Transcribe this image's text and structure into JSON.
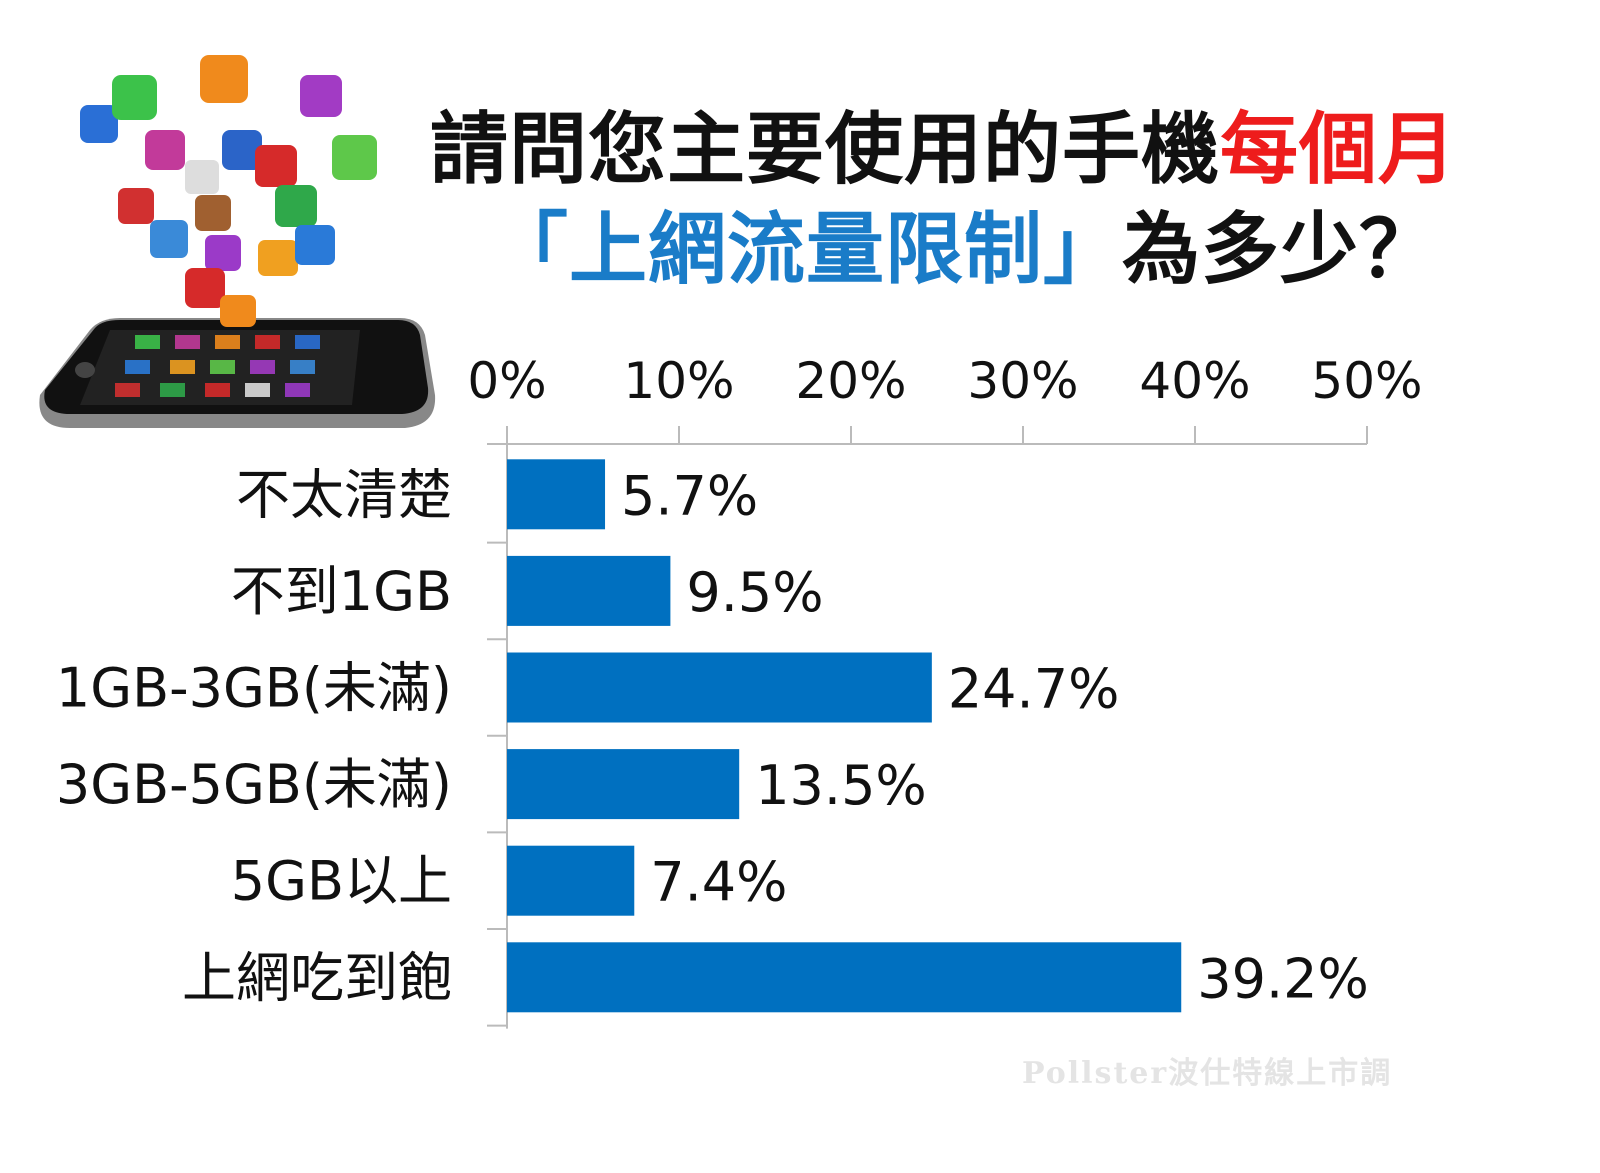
{
  "title": {
    "line1_black": "請問您主要使用的手機",
    "line1_red": "每個月",
    "line2_blue": "「上網流量限制」",
    "line2_black": "為多少？"
  },
  "watermark": "Pollster波仕特線上市調",
  "colors": {
    "bar": "#0070c0",
    "highlight": "#ee1c1c",
    "title_blue": "#1a7cc8"
  },
  "chart_data": {
    "type": "bar",
    "orientation": "horizontal",
    "categories": [
      "不太清楚",
      "不到1GB",
      "1GB-3GB(未滿)",
      "3GB-5GB(未滿)",
      "5GB以上",
      "上網吃到飽"
    ],
    "values": [
      5.7,
      9.5,
      24.7,
      13.5,
      7.4,
      39.2
    ],
    "value_labels": [
      "5.7%",
      "9.5%",
      "24.7%",
      "13.5%",
      "7.4%",
      "39.2%"
    ],
    "highlight_index": 5,
    "xlim": [
      0,
      50
    ],
    "xticks": [
      0,
      10,
      20,
      30,
      40,
      50
    ],
    "xtick_labels": [
      "0%",
      "10%",
      "20%",
      "30%",
      "40%",
      "50%"
    ],
    "axis_position": "top",
    "grid": false,
    "xlabel": "",
    "ylabel": ""
  }
}
